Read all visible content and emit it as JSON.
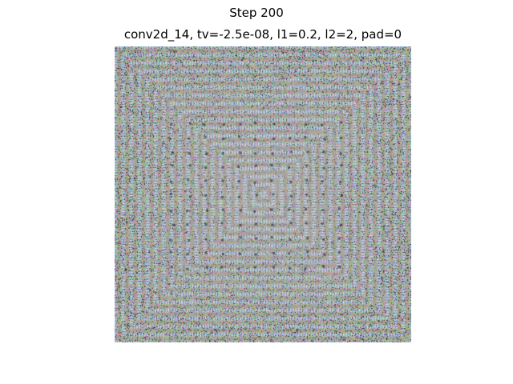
{
  "figure": {
    "suptitle": "Step 200",
    "axes_title": "conv2d_14, tv=-2.5e-08, l1=0.2, l2=2, pad=0"
  },
  "image": {
    "description_kind": "feature-visualization",
    "axis_visible": false,
    "pattern": "concentric square rings of high-frequency colored noise",
    "palette": [
      "#b39ad1",
      "#6fd7c4",
      "#e3d37a",
      "#e58ac7",
      "#8fe08a",
      "#7aa6e8",
      "#c7c1c9",
      "#1e1e22"
    ]
  }
}
